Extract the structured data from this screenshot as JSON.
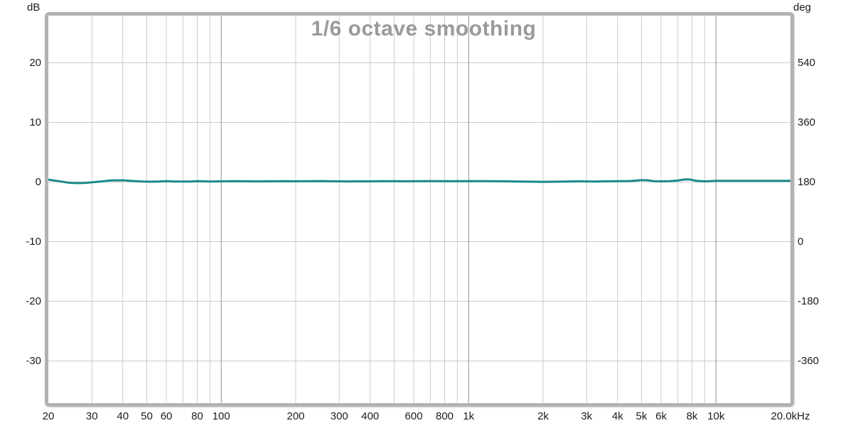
{
  "chart_data": {
    "type": "line",
    "title": "1/6 octave smoothing",
    "title_color": "#9a9a9a",
    "label_color": "#1c1c1c",
    "frame_color": "#b2b2b2",
    "grid": {
      "minor_color": "#cccccc",
      "major_color": "#909090"
    },
    "x_axis": {
      "scale": "log",
      "unit": "Hz",
      "min": 20,
      "max": 20000,
      "tick_labels": [
        "20",
        "30",
        "40",
        "50",
        "60",
        "80",
        "100",
        "200",
        "300",
        "400",
        "600",
        "800",
        "1k",
        "2k",
        "3k",
        "4k",
        "5k",
        "6k",
        "8k",
        "10k",
        "20.0kHz"
      ],
      "tick_values": [
        20,
        30,
        40,
        50,
        60,
        80,
        100,
        200,
        300,
        400,
        600,
        800,
        1000,
        2000,
        3000,
        4000,
        5000,
        6000,
        8000,
        10000,
        20000
      ],
      "gridlines_minor": [
        30,
        40,
        50,
        60,
        70,
        80,
        90,
        200,
        300,
        400,
        500,
        600,
        700,
        800,
        900,
        2000,
        3000,
        4000,
        5000,
        6000,
        7000,
        8000,
        9000
      ],
      "gridlines_major": [
        100,
        1000,
        10000
      ]
    },
    "y_left": {
      "unit": "dB",
      "tick_values": [
        20,
        10,
        0,
        -10,
        -20,
        -30
      ],
      "ylim": [
        -37,
        28
      ],
      "grid_on": true
    },
    "y_right": {
      "unit": "deg",
      "tick_values": [
        540,
        360,
        180,
        0,
        -180,
        -360
      ],
      "ylim": [
        -486,
        684
      ],
      "deg_per_db": 18,
      "deg_at_0db": 180
    },
    "legend": {
      "visible": false
    },
    "series": [
      {
        "name": "magnitude-trace",
        "color": "#1a8a8a",
        "width": 3,
        "points_hz_db": [
          [
            20,
            0.4
          ],
          [
            22,
            0.15
          ],
          [
            24,
            -0.1
          ],
          [
            26,
            -0.18
          ],
          [
            28,
            -0.15
          ],
          [
            30,
            -0.05
          ],
          [
            33,
            0.12
          ],
          [
            36,
            0.28
          ],
          [
            40,
            0.3
          ],
          [
            44,
            0.18
          ],
          [
            48,
            0.08
          ],
          [
            52,
            0.06
          ],
          [
            56,
            0.1
          ],
          [
            60,
            0.14
          ],
          [
            65,
            0.1
          ],
          [
            70,
            0.08
          ],
          [
            75,
            0.1
          ],
          [
            80,
            0.14
          ],
          [
            85,
            0.12
          ],
          [
            90,
            0.1
          ],
          [
            100,
            0.12
          ],
          [
            110,
            0.15
          ],
          [
            125,
            0.13
          ],
          [
            140,
            0.11
          ],
          [
            160,
            0.13
          ],
          [
            180,
            0.15
          ],
          [
            200,
            0.13
          ],
          [
            225,
            0.15
          ],
          [
            250,
            0.17
          ],
          [
            280,
            0.13
          ],
          [
            320,
            0.11
          ],
          [
            360,
            0.12
          ],
          [
            400,
            0.12
          ],
          [
            450,
            0.15
          ],
          [
            500,
            0.16
          ],
          [
            560,
            0.13
          ],
          [
            630,
            0.15
          ],
          [
            710,
            0.17
          ],
          [
            800,
            0.15
          ],
          [
            900,
            0.15
          ],
          [
            1000,
            0.15
          ],
          [
            1100,
            0.17
          ],
          [
            1250,
            0.15
          ],
          [
            1400,
            0.12
          ],
          [
            1600,
            0.1
          ],
          [
            1800,
            0.06
          ],
          [
            2000,
            0.03
          ],
          [
            2200,
            0.06
          ],
          [
            2500,
            0.1
          ],
          [
            2800,
            0.12
          ],
          [
            3200,
            0.1
          ],
          [
            3600,
            0.12
          ],
          [
            4000,
            0.14
          ],
          [
            4500,
            0.18
          ],
          [
            5000,
            0.32
          ],
          [
            5300,
            0.3
          ],
          [
            5600,
            0.16
          ],
          [
            6000,
            0.12
          ],
          [
            6500,
            0.15
          ],
          [
            7000,
            0.25
          ],
          [
            7500,
            0.45
          ],
          [
            7900,
            0.42
          ],
          [
            8300,
            0.2
          ],
          [
            9000,
            0.12
          ],
          [
            9500,
            0.15
          ],
          [
            10000,
            0.2
          ],
          [
            11000,
            0.22
          ],
          [
            12500,
            0.2
          ],
          [
            14000,
            0.2
          ],
          [
            16000,
            0.2
          ],
          [
            18000,
            0.2
          ],
          [
            20000,
            0.2
          ]
        ]
      }
    ]
  }
}
